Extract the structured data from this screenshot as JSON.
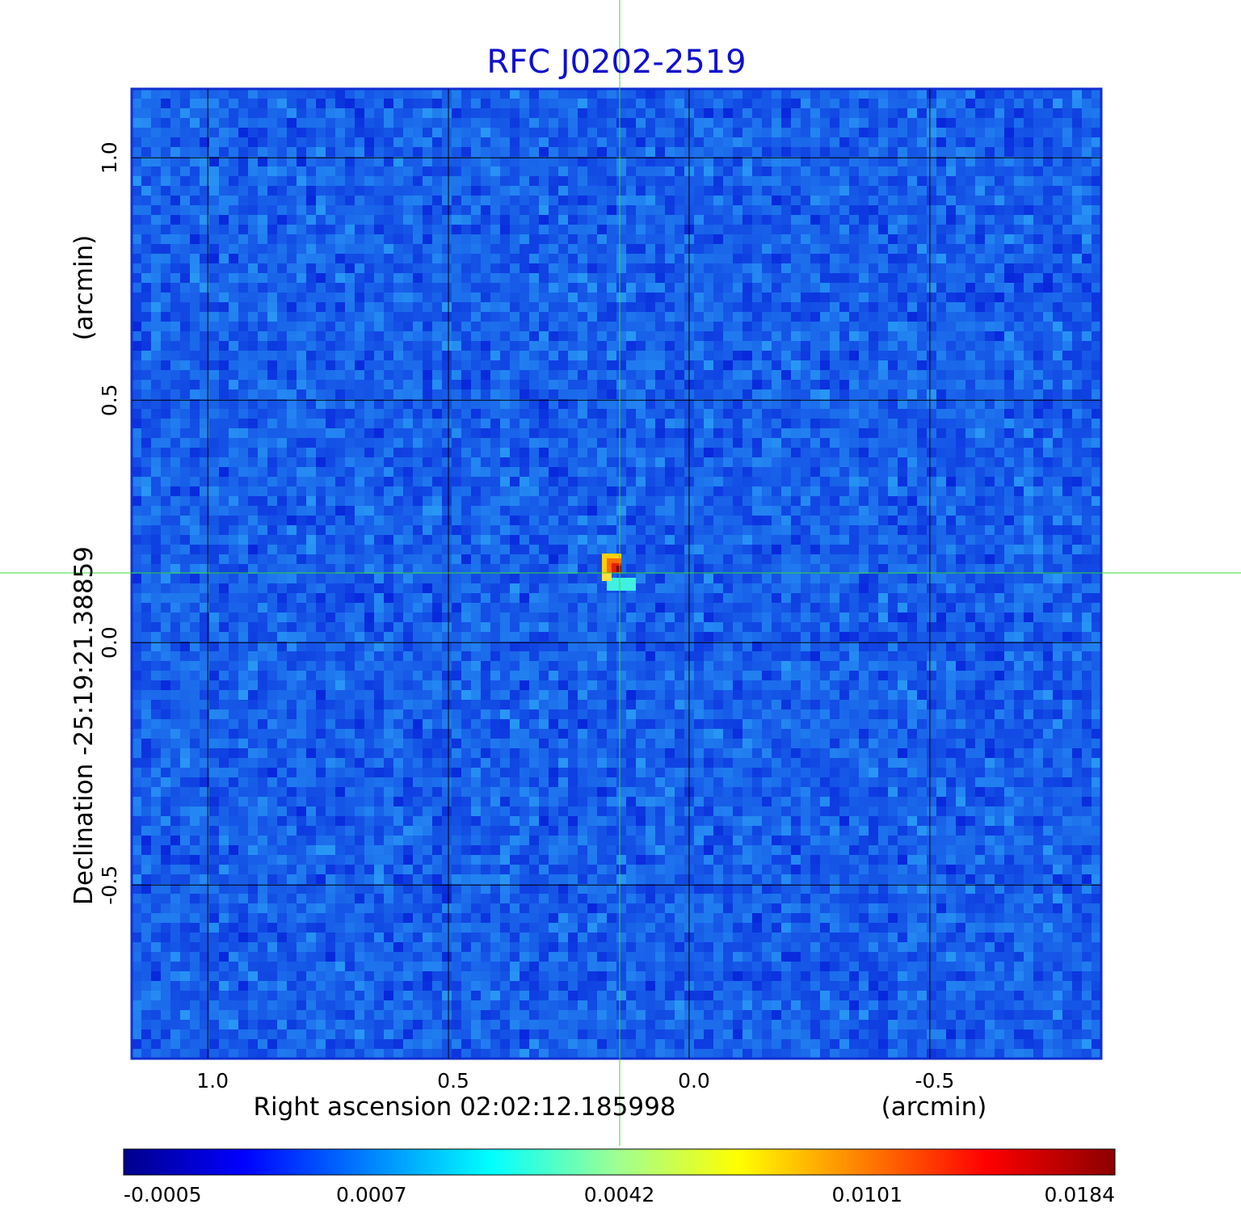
{
  "chart_data": {
    "type": "image",
    "title": "RFC J0202-2519",
    "xlabel": "Right ascension  02:02:12.185998",
    "xunit": "(arcmin)",
    "ylabel": "Declination  -25:19:21.38859",
    "yunit": "(arcmin)",
    "xlim": [
      1.158,
      -0.856
    ],
    "ylim": [
      -0.858,
      1.142
    ],
    "xticks": [
      {
        "value": 1,
        "label": "1.0"
      },
      0.5,
      {
        "value": 0,
        "label": "0.0"
      },
      -0.5
    ],
    "yticks": [
      {
        "value": -0.5,
        "label": "-0.5"
      },
      {
        "value": 0,
        "label": "0.0"
      },
      0.5,
      {
        "value": 1,
        "label": "1.0"
      }
    ],
    "grid": true,
    "colorbar_ticks": [
      -0.0005,
      0.0007,
      0.0042,
      0.0101,
      0.0184
    ]
  }
}
